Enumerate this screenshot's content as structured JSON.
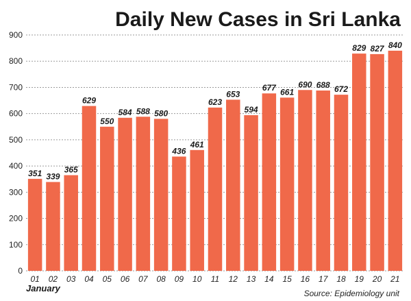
{
  "chart_data": {
    "type": "bar",
    "title": "Daily New Cases in Sri Lanka",
    "xlabel": "January",
    "source": "Source: Epidemiology unit",
    "categories": [
      "01",
      "02",
      "03",
      "04",
      "05",
      "06",
      "07",
      "08",
      "09",
      "10",
      "11",
      "12",
      "13",
      "14",
      "15",
      "16",
      "17",
      "18",
      "19",
      "20",
      "21"
    ],
    "values": [
      351,
      339,
      365,
      629,
      550,
      584,
      588,
      580,
      436,
      461,
      623,
      653,
      594,
      677,
      661,
      690,
      688,
      672,
      829,
      827,
      840
    ],
    "ylim": [
      0,
      900
    ],
    "yticks": [
      0,
      100,
      200,
      300,
      400,
      500,
      600,
      700,
      800,
      900
    ],
    "grid": true,
    "bar_color": "#f0694a"
  }
}
